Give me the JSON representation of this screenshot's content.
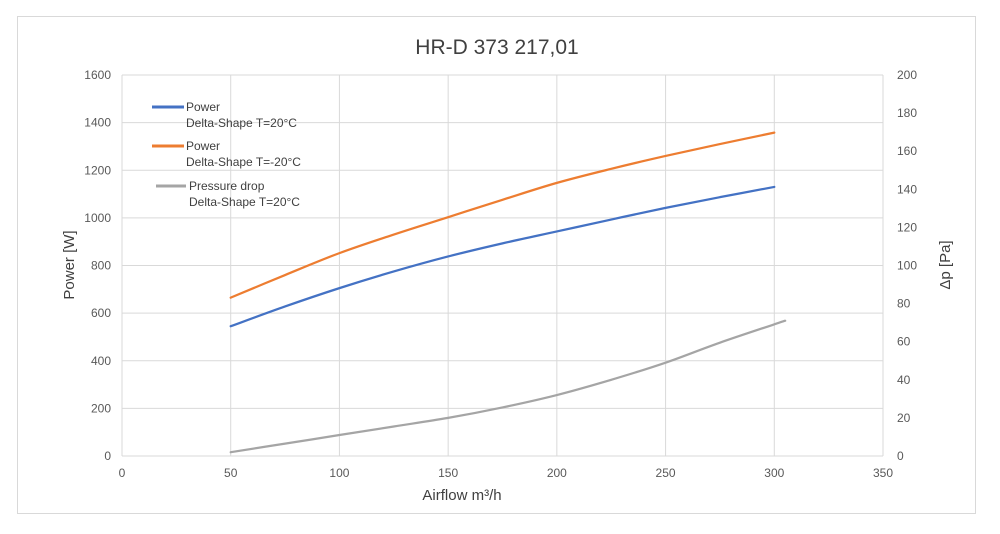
{
  "chart_data": {
    "type": "line",
    "title": "HR-D 373 217,01",
    "xlabel": "Airflow m³/h",
    "ylabel": "Power [W]",
    "y2label": "Δp [Pa]",
    "xlim": [
      0,
      350
    ],
    "ylim": [
      0,
      1600
    ],
    "y2lim": [
      0,
      200
    ],
    "xticks": [
      "0",
      "50",
      "100",
      "150",
      "200",
      "250",
      "300",
      "350"
    ],
    "yticks": [
      "0",
      "200",
      "400",
      "600",
      "800",
      "1000",
      "1200",
      "1400",
      "1600"
    ],
    "y2ticks": [
      "0",
      "20",
      "40",
      "60",
      "80",
      "100",
      "120",
      "140",
      "160",
      "180",
      "200"
    ],
    "grid": true,
    "legend_position": "top-left",
    "series": [
      {
        "name_line1": "Power",
        "name_line2": "Delta-Shape T=20°C",
        "color": "#4472c4",
        "axis": "left",
        "x": [
          50,
          75,
          100,
          125,
          150,
          175,
          200,
          225,
          250,
          275,
          300
        ],
        "y": [
          545,
          628,
          705,
          775,
          838,
          893,
          943,
          993,
          1042,
          1087,
          1130
        ]
      },
      {
        "name_line1": "Power",
        "name_line2": "Delta-Shape T=-20°C",
        "color": "#ed7d31",
        "axis": "left",
        "x": [
          50,
          75,
          100,
          125,
          150,
          175,
          200,
          225,
          250,
          275,
          300
        ],
        "y": [
          665,
          760,
          852,
          930,
          1003,
          1076,
          1147,
          1206,
          1260,
          1310,
          1358
        ]
      },
      {
        "name_line1": "Pressure drop",
        "name_line2": "Delta-Shape T=20°C",
        "color": "#a5a5a5",
        "axis": "right",
        "x": [
          50,
          75,
          100,
          125,
          150,
          175,
          200,
          225,
          250,
          275,
          305
        ],
        "y": [
          2,
          6.5,
          11,
          15.5,
          20,
          25.5,
          32,
          40,
          49,
          59.5,
          71
        ]
      }
    ]
  }
}
